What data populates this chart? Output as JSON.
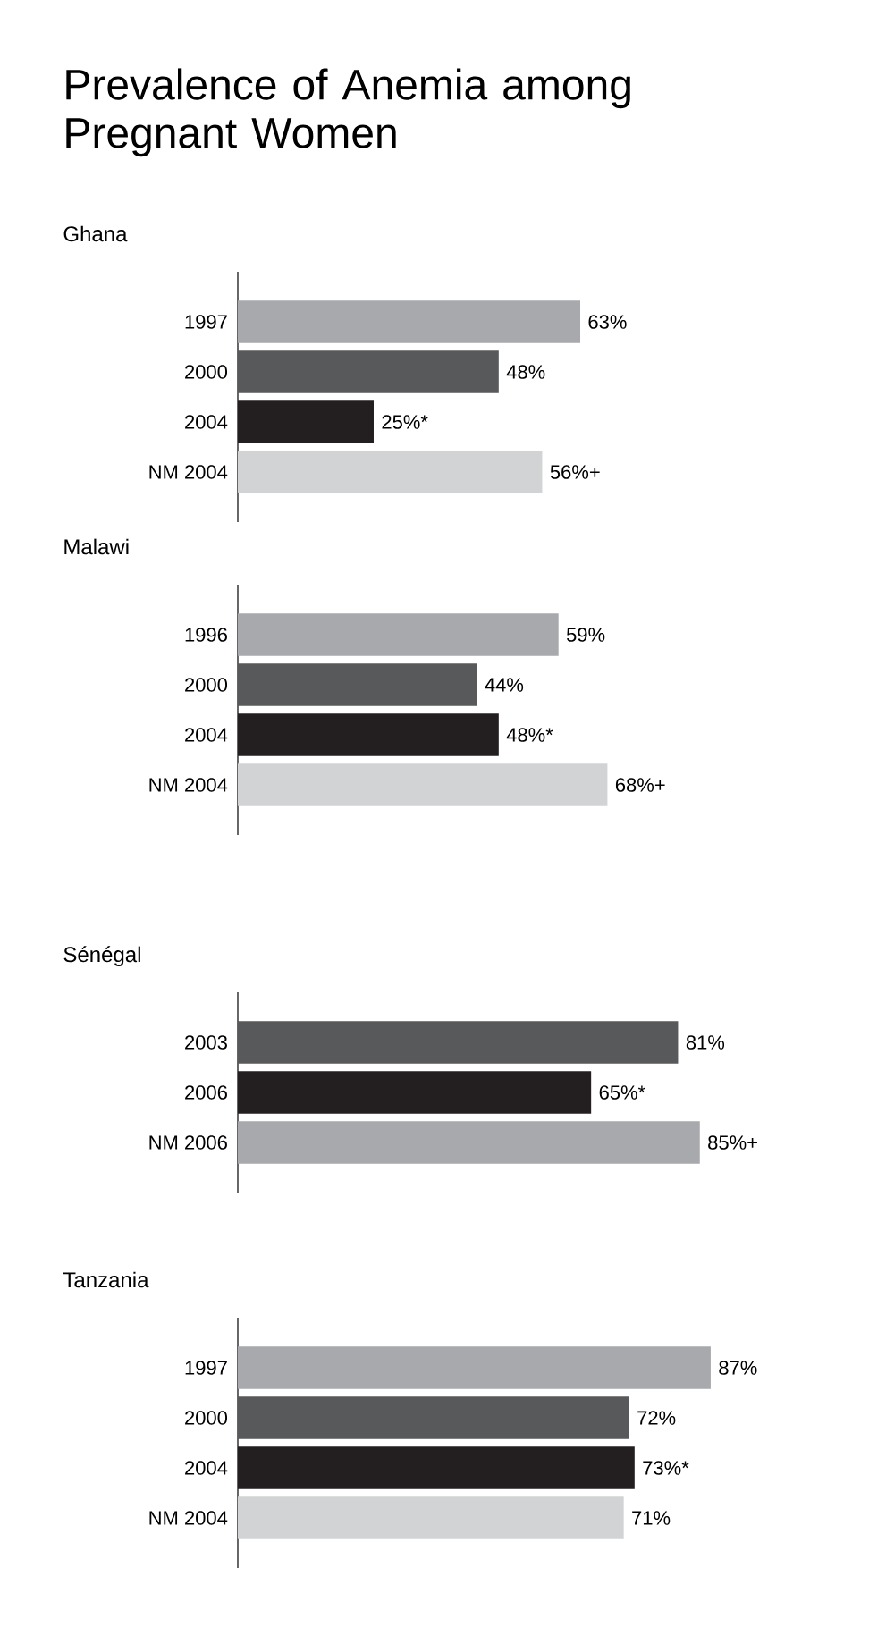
{
  "chart_data": [
    {
      "type": "bar",
      "orientation": "horizontal",
      "title": "Prevalence of Anemia among Pregnant Women",
      "subtitle": "Ghana",
      "categories": [
        "1997",
        "2000",
        "2004",
        "NM 2004"
      ],
      "values": [
        63,
        48,
        25,
        56
      ],
      "value_labels": [
        "63%",
        "48%",
        "25%*",
        "56%+"
      ],
      "colors": [
        "#a7a9ac",
        "#58595b",
        "#231f20",
        "#d1d3d4"
      ],
      "tick_labels": "y"
    },
    {
      "type": "bar",
      "orientation": "horizontal",
      "subtitle": "Malawi",
      "categories": [
        "1996",
        "2000",
        "2004",
        "NM 2004"
      ],
      "values": [
        59,
        44,
        48,
        68
      ],
      "value_labels": [
        "59%",
        "44%",
        "48%*",
        "68%+"
      ],
      "colors": [
        "#a7a9ac",
        "#58595b",
        "#231f20",
        "#d1d3d4"
      ],
      "tick_labels": "y"
    },
    {
      "type": "bar",
      "orientation": "horizontal",
      "subtitle": "Sénégal",
      "categories": [
        "2003",
        "2006",
        "NM 2006"
      ],
      "values": [
        81,
        65,
        85
      ],
      "value_labels": [
        "81%",
        "65%*",
        "85%+"
      ],
      "colors": [
        "#58595b",
        "#231f20",
        "#a7a9ac"
      ],
      "tick_labels": "y"
    },
    {
      "type": "bar",
      "orientation": "horizontal",
      "subtitle": "Tanzania",
      "categories": [
        "1997",
        "2000",
        "2004",
        "NM 2004"
      ],
      "values": [
        87,
        72,
        73,
        71
      ],
      "value_labels": [
        "87%",
        "72%",
        "73%*",
        "71%"
      ],
      "colors": [
        "#a7a9ac",
        "#58595b",
        "#231f20",
        "#d1d3d4"
      ],
      "tick_labels": "y"
    }
  ]
}
